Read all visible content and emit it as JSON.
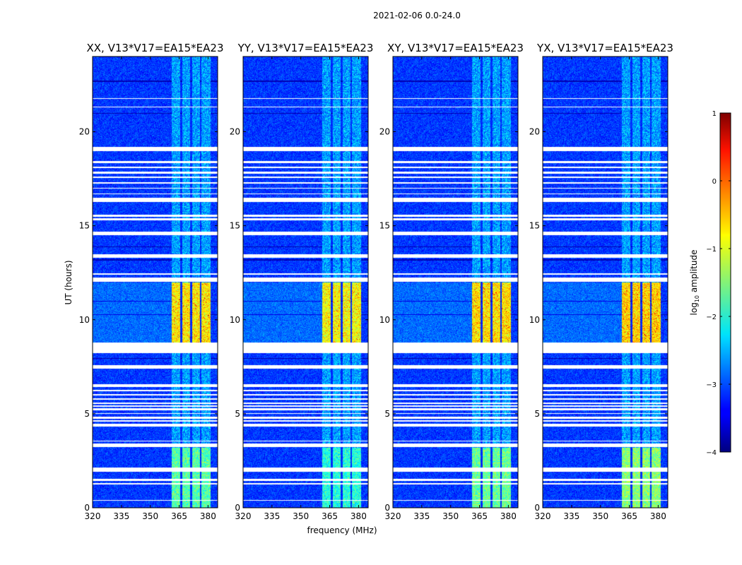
{
  "chart_data": {
    "type": "heatmap",
    "suptitle": "2021-02-06 0.0-24.0",
    "xlabel": "frequency (MHz)",
    "ylabel": "UT (hours)",
    "xlim": [
      320,
      385
    ],
    "ylim": [
      0,
      24
    ],
    "xticks": [
      320,
      335,
      350,
      365,
      380
    ],
    "xtick_labels": [
      "320",
      "335",
      "350",
      "365",
      "380"
    ],
    "yticks": [
      0,
      5,
      10,
      15,
      20
    ],
    "ytick_labels": [
      "0",
      "5",
      "10",
      "15",
      "20"
    ],
    "panels": [
      {
        "title": "XX, V13*V17=EA15*EA23",
        "level_scale": 1.0
      },
      {
        "title": "YY, V13*V17=EA15*EA23",
        "level_scale": 1.15
      },
      {
        "title": "XY, V13*V17=EA15*EA23",
        "level_scale": 0.95
      },
      {
        "title": "YX, V13*V17=EA15*EA23",
        "level_scale": 0.85
      }
    ],
    "colorbar": {
      "label": "log10 amplitude",
      "label_prefix": "log",
      "label_sub": "10",
      "label_suffix": " amplitude",
      "range": [
        -4,
        1
      ],
      "ticks": [
        1,
        0,
        -1,
        -2,
        -3,
        -4
      ],
      "tick_labels": [
        "1",
        "0",
        "−1",
        "−2",
        "−3",
        "−4"
      ],
      "colormap": "jet"
    },
    "background_log_amp": -3.1,
    "rfi_band_mhz": [
      361,
      381
    ],
    "rfi_channel_gaps_mhz": [
      366,
      371,
      376
    ],
    "rfi_bright_periods": [
      {
        "t_start": 8.8,
        "t_end": 12.0,
        "log_amp": -0.8
      },
      {
        "t_start": 0.0,
        "t_end": 3.2,
        "log_amp": -1.7
      }
    ],
    "flagged_time_ranges_hours": [
      [
        0.4,
        0.45
      ],
      [
        1.25,
        1.35
      ],
      [
        1.45,
        1.55
      ],
      [
        1.95,
        2.15
      ],
      [
        3.25,
        3.45
      ],
      [
        3.55,
        3.6
      ],
      [
        4.35,
        4.5
      ],
      [
        4.6,
        4.68
      ],
      [
        4.75,
        4.85
      ],
      [
        5.0,
        5.05
      ],
      [
        5.2,
        5.3
      ],
      [
        5.4,
        5.45
      ],
      [
        5.55,
        5.6
      ],
      [
        5.75,
        5.85
      ],
      [
        6.0,
        6.05
      ],
      [
        6.2,
        6.3
      ],
      [
        6.45,
        6.6
      ],
      [
        7.4,
        7.6
      ],
      [
        8.25,
        8.8
      ],
      [
        12.05,
        12.25
      ],
      [
        12.4,
        12.5
      ],
      [
        13.3,
        13.5
      ],
      [
        14.5,
        14.7
      ],
      [
        15.3,
        15.4
      ],
      [
        15.5,
        15.6
      ],
      [
        16.3,
        16.5
      ],
      [
        16.7,
        16.75
      ],
      [
        17.0,
        17.05
      ],
      [
        17.25,
        17.35
      ],
      [
        17.55,
        17.65
      ],
      [
        17.8,
        17.9
      ],
      [
        18.1,
        18.15
      ],
      [
        18.35,
        18.45
      ],
      [
        19.0,
        19.2
      ],
      [
        21.3,
        21.35
      ],
      [
        21.75,
        21.8
      ]
    ],
    "dark_time_lines_hours": [
      7.95,
      10.3,
      11.0,
      13.2,
      13.9,
      21.0,
      22.7
    ]
  }
}
